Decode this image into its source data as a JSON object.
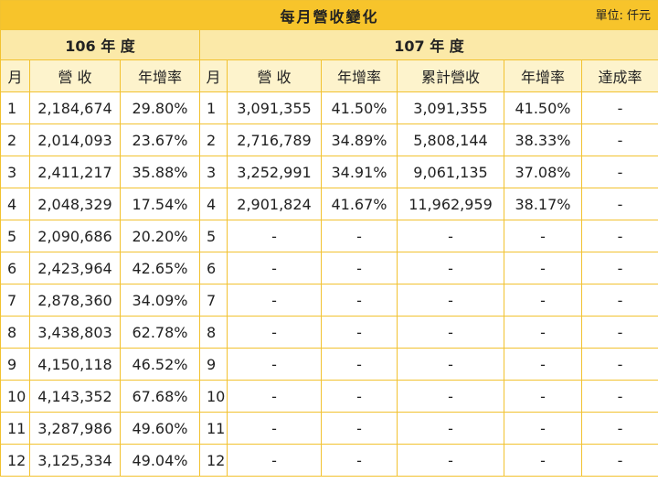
{
  "title": "每月營收變化",
  "unit": "單位: 仟元",
  "year_a": "106 年 度",
  "year_b": "107 年 度",
  "headers": {
    "month_a": "月",
    "rev_a": "營 收",
    "yoy_a": "年增率",
    "month_b": "月",
    "rev_b": "營 收",
    "yoy_b": "年增率",
    "cum_rev": "累計營收",
    "cum_yoy": "年增率",
    "achieve": "達成率"
  },
  "rows": [
    {
      "m106": "1",
      "rev106": "2,184,674",
      "yoy106": "29.80%",
      "m107": "1",
      "rev107": "3,091,355",
      "yoy107": "41.50%",
      "cum": "3,091,355",
      "cumyoy": "41.50%",
      "ach": "-"
    },
    {
      "m106": "2",
      "rev106": "2,014,093",
      "yoy106": "23.67%",
      "m107": "2",
      "rev107": "2,716,789",
      "yoy107": "34.89%",
      "cum": "5,808,144",
      "cumyoy": "38.33%",
      "ach": "-"
    },
    {
      "m106": "3",
      "rev106": "2,411,217",
      "yoy106": "35.88%",
      "m107": "3",
      "rev107": "3,252,991",
      "yoy107": "34.91%",
      "cum": "9,061,135",
      "cumyoy": "37.08%",
      "ach": "-"
    },
    {
      "m106": "4",
      "rev106": "2,048,329",
      "yoy106": "17.54%",
      "m107": "4",
      "rev107": "2,901,824",
      "yoy107": "41.67%",
      "cum": "11,962,959",
      "cumyoy": "38.17%",
      "ach": "-"
    },
    {
      "m106": "5",
      "rev106": "2,090,686",
      "yoy106": "20.20%",
      "m107": "5",
      "rev107": "-",
      "yoy107": "-",
      "cum": "-",
      "cumyoy": "-",
      "ach": "-"
    },
    {
      "m106": "6",
      "rev106": "2,423,964",
      "yoy106": "42.65%",
      "m107": "6",
      "rev107": "-",
      "yoy107": "-",
      "cum": "-",
      "cumyoy": "-",
      "ach": "-"
    },
    {
      "m106": "7",
      "rev106": "2,878,360",
      "yoy106": "34.09%",
      "m107": "7",
      "rev107": "-",
      "yoy107": "-",
      "cum": "-",
      "cumyoy": "-",
      "ach": "-"
    },
    {
      "m106": "8",
      "rev106": "3,438,803",
      "yoy106": "62.78%",
      "m107": "8",
      "rev107": "-",
      "yoy107": "-",
      "cum": "-",
      "cumyoy": "-",
      "ach": "-"
    },
    {
      "m106": "9",
      "rev106": "4,150,118",
      "yoy106": "46.52%",
      "m107": "9",
      "rev107": "-",
      "yoy107": "-",
      "cum": "-",
      "cumyoy": "-",
      "ach": "-"
    },
    {
      "m106": "10",
      "rev106": "4,143,352",
      "yoy106": "67.68%",
      "m107": "10",
      "rev107": "-",
      "yoy107": "-",
      "cum": "-",
      "cumyoy": "-",
      "ach": "-"
    },
    {
      "m106": "11",
      "rev106": "3,287,986",
      "yoy106": "49.60%",
      "m107": "11",
      "rev107": "-",
      "yoy107": "-",
      "cum": "-",
      "cumyoy": "-",
      "ach": "-"
    },
    {
      "m106": "12",
      "rev106": "3,125,334",
      "yoy106": "49.04%",
      "m107": "12",
      "rev107": "-",
      "yoy107": "-",
      "cum": "-",
      "cumyoy": "-",
      "ach": "-"
    }
  ]
}
